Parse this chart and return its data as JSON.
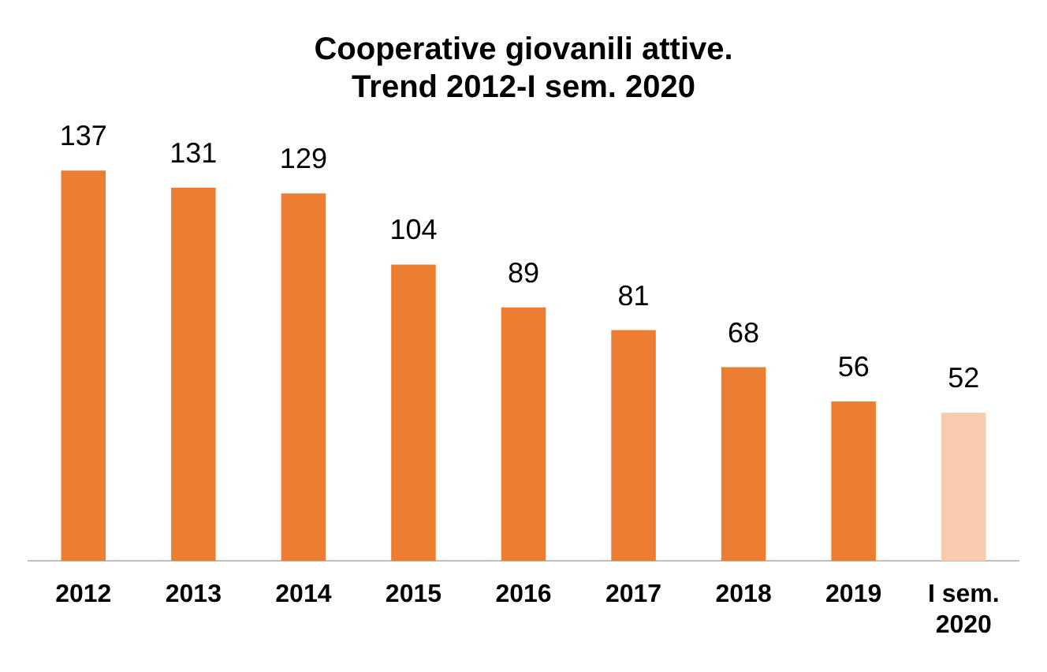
{
  "chart_data": {
    "type": "bar",
    "title": "Cooperative giovanili attive.\nTrend 2012-I sem. 2020",
    "categories": [
      "2012",
      "2013",
      "2014",
      "2015",
      "2016",
      "2017",
      "2018",
      "2019",
      "I sem. 2020"
    ],
    "values": [
      137,
      131,
      129,
      104,
      89,
      81,
      68,
      56,
      52
    ],
    "colors": [
      "#ed7d31",
      "#ed7d31",
      "#ed7d31",
      "#ed7d31",
      "#ed7d31",
      "#ed7d31",
      "#ed7d31",
      "#ed7d31",
      "#f8cbad"
    ],
    "data_labels": true,
    "grid": false,
    "legend": false
  }
}
